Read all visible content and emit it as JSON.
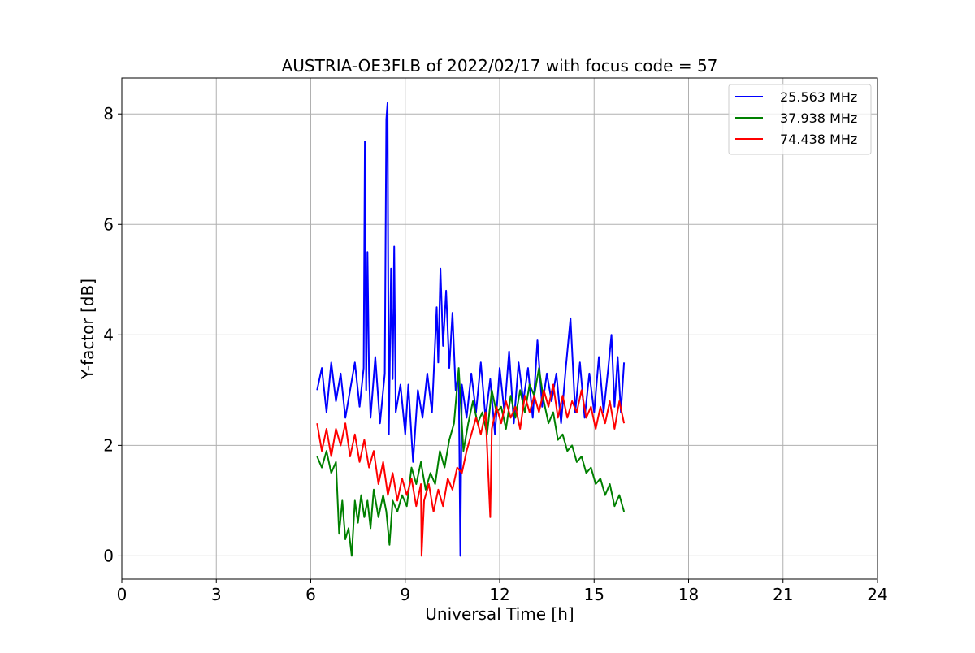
{
  "chart_data": {
    "type": "line",
    "title": "AUSTRIA-OE3FLB of 2022/02/17 with focus code = 57",
    "xlabel": "Universal Time [h]",
    "ylabel": "Y-factor [dB]",
    "xlim": [
      0,
      24
    ],
    "ylim": [
      -0.42,
      8.65
    ],
    "x_ticks": [
      0,
      3,
      6,
      9,
      12,
      15,
      18,
      21,
      24
    ],
    "y_ticks": [
      0,
      2,
      4,
      6,
      8
    ],
    "x_tick_labels": [
      "0",
      "3",
      "6",
      "9",
      "12",
      "15",
      "18",
      "21",
      "24"
    ],
    "y_tick_labels": [
      "0",
      "2",
      "4",
      "6",
      "8"
    ],
    "grid": true,
    "legend": "upper right",
    "series": [
      {
        "name": "25.563 MHz",
        "color": "#0000ff",
        "points": [
          [
            6.2,
            3.0
          ],
          [
            6.35,
            3.4
          ],
          [
            6.5,
            2.6
          ],
          [
            6.65,
            3.5
          ],
          [
            6.8,
            2.8
          ],
          [
            6.95,
            3.3
          ],
          [
            7.1,
            2.5
          ],
          [
            7.25,
            3.0
          ],
          [
            7.4,
            3.5
          ],
          [
            7.55,
            2.7
          ],
          [
            7.68,
            3.4
          ],
          [
            7.72,
            7.5
          ],
          [
            7.76,
            3.0
          ],
          [
            7.8,
            5.5
          ],
          [
            7.85,
            3.3
          ],
          [
            7.9,
            2.5
          ],
          [
            8.05,
            3.6
          ],
          [
            8.2,
            2.4
          ],
          [
            8.35,
            3.3
          ],
          [
            8.4,
            7.9
          ],
          [
            8.44,
            8.2
          ],
          [
            8.48,
            2.2
          ],
          [
            8.55,
            5.2
          ],
          [
            8.6,
            3.2
          ],
          [
            8.65,
            5.6
          ],
          [
            8.7,
            2.6
          ],
          [
            8.85,
            3.1
          ],
          [
            9.0,
            2.2
          ],
          [
            9.1,
            3.1
          ],
          [
            9.25,
            1.7
          ],
          [
            9.4,
            3.0
          ],
          [
            9.55,
            2.5
          ],
          [
            9.7,
            3.3
          ],
          [
            9.85,
            2.6
          ],
          [
            10.0,
            4.5
          ],
          [
            10.05,
            3.5
          ],
          [
            10.12,
            5.2
          ],
          [
            10.2,
            3.8
          ],
          [
            10.3,
            4.8
          ],
          [
            10.4,
            3.4
          ],
          [
            10.5,
            4.4
          ],
          [
            10.6,
            3.0
          ],
          [
            10.7,
            3.3
          ],
          [
            10.75,
            0.0
          ],
          [
            10.8,
            3.1
          ],
          [
            10.95,
            2.5
          ],
          [
            11.1,
            3.3
          ],
          [
            11.25,
            2.6
          ],
          [
            11.4,
            3.5
          ],
          [
            11.55,
            2.5
          ],
          [
            11.7,
            3.2
          ],
          [
            11.85,
            2.2
          ],
          [
            12.0,
            3.4
          ],
          [
            12.15,
            2.6
          ],
          [
            12.3,
            3.7
          ],
          [
            12.45,
            2.4
          ],
          [
            12.6,
            3.5
          ],
          [
            12.75,
            2.8
          ],
          [
            12.9,
            3.4
          ],
          [
            13.05,
            2.5
          ],
          [
            13.2,
            3.9
          ],
          [
            13.35,
            2.7
          ],
          [
            13.5,
            3.3
          ],
          [
            13.65,
            2.8
          ],
          [
            13.8,
            3.3
          ],
          [
            13.95,
            2.4
          ],
          [
            14.1,
            3.4
          ],
          [
            14.25,
            4.3
          ],
          [
            14.4,
            2.6
          ],
          [
            14.55,
            3.5
          ],
          [
            14.7,
            2.5
          ],
          [
            14.85,
            3.3
          ],
          [
            15.0,
            2.6
          ],
          [
            15.15,
            3.6
          ],
          [
            15.3,
            2.6
          ],
          [
            15.45,
            3.4
          ],
          [
            15.55,
            4.0
          ],
          [
            15.65,
            2.7
          ],
          [
            15.75,
            3.6
          ],
          [
            15.85,
            2.6
          ],
          [
            15.95,
            3.5
          ]
        ]
      },
      {
        "name": "37.938 MHz",
        "color": "#008000",
        "points": [
          [
            6.2,
            1.8
          ],
          [
            6.35,
            1.6
          ],
          [
            6.5,
            1.9
          ],
          [
            6.65,
            1.5
          ],
          [
            6.8,
            1.7
          ],
          [
            6.9,
            0.4
          ],
          [
            7.0,
            1.0
          ],
          [
            7.1,
            0.3
          ],
          [
            7.2,
            0.5
          ],
          [
            7.3,
            0.0
          ],
          [
            7.4,
            1.0
          ],
          [
            7.5,
            0.6
          ],
          [
            7.6,
            1.1
          ],
          [
            7.7,
            0.7
          ],
          [
            7.8,
            1.0
          ],
          [
            7.9,
            0.5
          ],
          [
            8.0,
            1.2
          ],
          [
            8.15,
            0.7
          ],
          [
            8.3,
            1.1
          ],
          [
            8.4,
            0.8
          ],
          [
            8.5,
            0.2
          ],
          [
            8.6,
            1.0
          ],
          [
            8.75,
            0.8
          ],
          [
            8.9,
            1.1
          ],
          [
            9.05,
            0.9
          ],
          [
            9.2,
            1.6
          ],
          [
            9.35,
            1.3
          ],
          [
            9.5,
            1.7
          ],
          [
            9.65,
            1.2
          ],
          [
            9.8,
            1.5
          ],
          [
            9.95,
            1.3
          ],
          [
            10.1,
            1.9
          ],
          [
            10.25,
            1.6
          ],
          [
            10.4,
            2.1
          ],
          [
            10.55,
            2.4
          ],
          [
            10.7,
            3.4
          ],
          [
            10.85,
            1.9
          ],
          [
            11.0,
            2.4
          ],
          [
            11.15,
            2.8
          ],
          [
            11.3,
            2.4
          ],
          [
            11.45,
            2.6
          ],
          [
            11.6,
            2.2
          ],
          [
            11.75,
            3.0
          ],
          [
            11.9,
            2.6
          ],
          [
            12.05,
            2.7
          ],
          [
            12.2,
            2.3
          ],
          [
            12.35,
            2.9
          ],
          [
            12.5,
            2.5
          ],
          [
            12.65,
            3.0
          ],
          [
            12.8,
            2.6
          ],
          [
            12.95,
            3.1
          ],
          [
            13.1,
            2.9
          ],
          [
            13.25,
            3.4
          ],
          [
            13.4,
            2.8
          ],
          [
            13.55,
            2.4
          ],
          [
            13.7,
            2.6
          ],
          [
            13.85,
            2.1
          ],
          [
            14.0,
            2.2
          ],
          [
            14.15,
            1.9
          ],
          [
            14.3,
            2.0
          ],
          [
            14.45,
            1.7
          ],
          [
            14.6,
            1.8
          ],
          [
            14.75,
            1.5
          ],
          [
            14.9,
            1.6
          ],
          [
            15.05,
            1.3
          ],
          [
            15.2,
            1.4
          ],
          [
            15.35,
            1.1
          ],
          [
            15.5,
            1.3
          ],
          [
            15.65,
            0.9
          ],
          [
            15.8,
            1.1
          ],
          [
            15.95,
            0.8
          ]
        ]
      },
      {
        "name": "74.438 MHz",
        "color": "#ff0000",
        "points": [
          [
            6.2,
            2.4
          ],
          [
            6.35,
            1.9
          ],
          [
            6.5,
            2.3
          ],
          [
            6.65,
            1.8
          ],
          [
            6.8,
            2.3
          ],
          [
            6.95,
            2.0
          ],
          [
            7.1,
            2.4
          ],
          [
            7.25,
            1.8
          ],
          [
            7.4,
            2.2
          ],
          [
            7.55,
            1.7
          ],
          [
            7.7,
            2.1
          ],
          [
            7.85,
            1.6
          ],
          [
            8.0,
            1.9
          ],
          [
            8.15,
            1.3
          ],
          [
            8.3,
            1.7
          ],
          [
            8.45,
            1.1
          ],
          [
            8.6,
            1.5
          ],
          [
            8.75,
            1.0
          ],
          [
            8.9,
            1.4
          ],
          [
            9.05,
            1.1
          ],
          [
            9.2,
            1.4
          ],
          [
            9.35,
            0.9
          ],
          [
            9.5,
            1.3
          ],
          [
            9.52,
            0.0
          ],
          [
            9.6,
            1.0
          ],
          [
            9.75,
            1.3
          ],
          [
            9.9,
            0.8
          ],
          [
            10.05,
            1.2
          ],
          [
            10.2,
            0.9
          ],
          [
            10.35,
            1.4
          ],
          [
            10.5,
            1.2
          ],
          [
            10.65,
            1.6
          ],
          [
            10.8,
            1.5
          ],
          [
            10.95,
            1.9
          ],
          [
            11.1,
            2.2
          ],
          [
            11.25,
            2.5
          ],
          [
            11.4,
            2.2
          ],
          [
            11.55,
            2.6
          ],
          [
            11.7,
            0.7
          ],
          [
            11.75,
            2.3
          ],
          [
            11.9,
            2.7
          ],
          [
            12.05,
            2.4
          ],
          [
            12.2,
            2.8
          ],
          [
            12.35,
            2.5
          ],
          [
            12.5,
            2.7
          ],
          [
            12.65,
            2.3
          ],
          [
            12.8,
            2.9
          ],
          [
            12.95,
            2.6
          ],
          [
            13.1,
            2.9
          ],
          [
            13.25,
            2.6
          ],
          [
            13.4,
            3.0
          ],
          [
            13.55,
            2.7
          ],
          [
            13.7,
            3.1
          ],
          [
            13.85,
            2.5
          ],
          [
            14.0,
            2.9
          ],
          [
            14.15,
            2.5
          ],
          [
            14.3,
            2.8
          ],
          [
            14.45,
            2.6
          ],
          [
            14.6,
            3.0
          ],
          [
            14.75,
            2.5
          ],
          [
            14.9,
            2.7
          ],
          [
            15.05,
            2.3
          ],
          [
            15.2,
            2.7
          ],
          [
            15.35,
            2.4
          ],
          [
            15.5,
            2.8
          ],
          [
            15.65,
            2.3
          ],
          [
            15.8,
            2.8
          ],
          [
            15.95,
            2.4
          ]
        ]
      }
    ]
  }
}
